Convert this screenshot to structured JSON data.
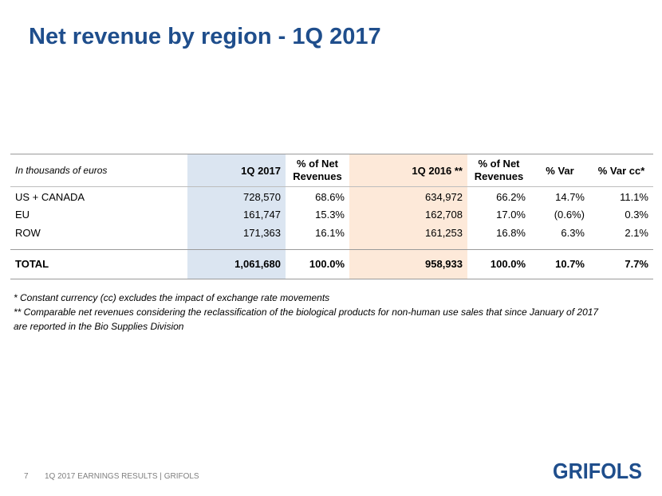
{
  "title": "Net revenue by region - 1Q 2017",
  "table": {
    "headers": {
      "label": "In thousands of euros",
      "col1": "1Q 2017",
      "col2": "% of Net Revenues",
      "col3": "1Q 2016 **",
      "col4": "% of Net Revenues",
      "col5": "% Var",
      "col6": "% Var cc*"
    },
    "rows": [
      {
        "label": "US + CANADA",
        "q1_2017": "728,570",
        "pct_2017": "68.6%",
        "q1_2016": "634,972",
        "pct_2016": "66.2%",
        "var": "14.7%",
        "var_cc": "11.1%"
      },
      {
        "label": "EU",
        "q1_2017": "161,747",
        "pct_2017": "15.3%",
        "q1_2016": "162,708",
        "pct_2016": "17.0%",
        "var": "(0.6%)",
        "var_cc": "0.3%"
      },
      {
        "label": "ROW",
        "q1_2017": "171,363",
        "pct_2017": "16.1%",
        "q1_2016": "161,253",
        "pct_2016": "16.8%",
        "var": "6.3%",
        "var_cc": "2.1%"
      }
    ],
    "total": {
      "label": "TOTAL",
      "q1_2017": "1,061,680",
      "pct_2017": "100.0%",
      "q1_2016": "958,933",
      "pct_2016": "100.0%",
      "var": "10.7%",
      "var_cc": "7.7%"
    }
  },
  "notes": [
    "* Constant currency (cc) excludes the impact of exchange rate movements",
    "** Comparable net revenues considering the reclassification of the biological products for non-human use sales that since January of 2017\nare reported in the Bio Supplies Division"
  ],
  "footer": {
    "page_number": "7",
    "text": "1Q 2017 EARNINGS RESULTS | GRIFOLS"
  },
  "logo": {
    "text": "GRIFOLS",
    "color": "#1f4e8c"
  }
}
